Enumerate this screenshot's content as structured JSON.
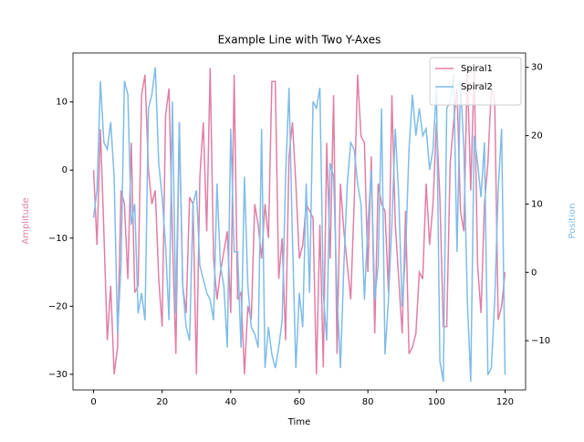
{
  "chart_data": {
    "type": "line",
    "title": "Example Line with Two Y-Axes",
    "xlabel": "Time",
    "ylabel": "Amplitude",
    "y2label": "Position",
    "x": [
      0,
      1,
      2,
      3,
      4,
      5,
      6,
      7,
      8,
      9,
      10,
      11,
      12,
      13,
      14,
      15,
      16,
      17,
      18,
      19,
      20,
      21,
      22,
      23,
      24,
      25,
      26,
      27,
      28,
      29,
      30,
      31,
      32,
      33,
      34,
      35,
      36,
      37,
      38,
      39,
      40,
      41,
      42,
      43,
      44,
      45,
      46,
      47,
      48,
      49,
      50,
      51,
      52,
      53,
      54,
      55,
      56,
      57,
      58,
      59,
      60,
      61,
      62,
      63,
      64,
      65,
      66,
      67,
      68,
      69,
      70,
      71,
      72,
      73,
      74,
      75,
      76,
      77,
      78,
      79,
      80,
      81,
      82,
      83,
      84,
      85,
      86,
      87,
      88,
      89,
      90,
      91,
      92,
      93,
      94,
      95,
      96,
      97,
      98,
      99,
      100,
      101,
      102,
      103,
      104,
      105,
      106,
      107,
      108,
      109,
      110,
      111,
      112,
      113,
      114,
      115,
      116,
      117,
      118,
      119,
      120
    ],
    "series": [
      {
        "name": "Spiral1",
        "color": "#e07fa6",
        "axis": "y",
        "values": [
          0,
          -11,
          6,
          -9,
          -25,
          -17,
          -30,
          -26,
          -3,
          -5,
          -16,
          4,
          -18,
          -17,
          11,
          14,
          0,
          -5,
          -3,
          -16,
          -23,
          8,
          12,
          -10,
          -27,
          7,
          -17,
          -21,
          -4,
          -5,
          -30,
          -1,
          7,
          -9,
          15,
          -13,
          -19,
          -15,
          -12,
          -9,
          -21,
          14,
          -19,
          -18,
          -30,
          -20,
          -22,
          -5,
          -8,
          -13,
          -5,
          -10,
          13,
          13,
          -16,
          -10,
          -25,
          2,
          7,
          -2,
          -13,
          -11,
          -5,
          -6,
          -7,
          -30,
          -8,
          -29,
          4,
          -13,
          11,
          -27,
          -2,
          -9,
          -14,
          -19,
          -5,
          14,
          5,
          4,
          -15,
          2,
          -24,
          -2,
          -5,
          -6,
          -18,
          11,
          -8,
          -16,
          -24,
          -6,
          -27,
          -26,
          -24,
          -15,
          -16,
          -2,
          -11,
          -5,
          7,
          -4,
          -23,
          -23,
          1,
          7,
          12,
          -6,
          -9,
          15,
          -3,
          15,
          -14,
          -21,
          -5,
          1,
          12,
          10,
          -22,
          -20,
          -15
        ]
      },
      {
        "name": "Spiral2",
        "color": "#7fbce8",
        "axis": "y2",
        "values": [
          8,
          12,
          28,
          19,
          18,
          22,
          14,
          -9,
          1,
          28,
          26,
          7,
          10,
          -6,
          -3,
          -7,
          24,
          26,
          30,
          16,
          11,
          4,
          -7,
          25,
          -6,
          22,
          -2,
          -8,
          -10,
          10,
          12,
          1,
          -1,
          -3,
          -4,
          -7,
          13,
          1,
          -2,
          -11,
          21,
          3,
          3,
          -11,
          14,
          -2,
          -8,
          -9,
          -11,
          21,
          -14,
          -8,
          -12,
          -14,
          -11,
          -7,
          14,
          27,
          5,
          -14,
          -3,
          -8,
          13,
          -3,
          25,
          24,
          27,
          -3,
          -10,
          16,
          14,
          -3,
          -14,
          1,
          13,
          19,
          18,
          13,
          10,
          -4,
          7,
          15,
          -4,
          1,
          24,
          -12,
          -4,
          7,
          21,
          11,
          -5,
          3,
          18,
          26,
          20,
          24,
          20,
          21,
          15,
          18,
          27,
          -13,
          -16,
          24,
          25,
          29,
          3,
          28,
          18,
          -4,
          -16,
          20,
          16,
          11,
          19,
          -15,
          -14,
          -4,
          12,
          21,
          -15
        ]
      }
    ],
    "xlim": [
      -6,
      126
    ],
    "xticks": [
      0,
      20,
      40,
      60,
      80,
      100,
      120
    ],
    "ylim": [
      -32.3,
      17.2
    ],
    "yticks": [
      {
        "value": -30,
        "label": "−30"
      },
      {
        "value": -20,
        "label": "−20"
      },
      {
        "value": -10,
        "label": "−10"
      },
      0,
      10
    ],
    "y2lim": [
      -17.2,
      32.1
    ],
    "y2ticks": [
      {
        "value": -10,
        "label": "−10"
      },
      0,
      10,
      20,
      30
    ],
    "legend": "upper right"
  }
}
